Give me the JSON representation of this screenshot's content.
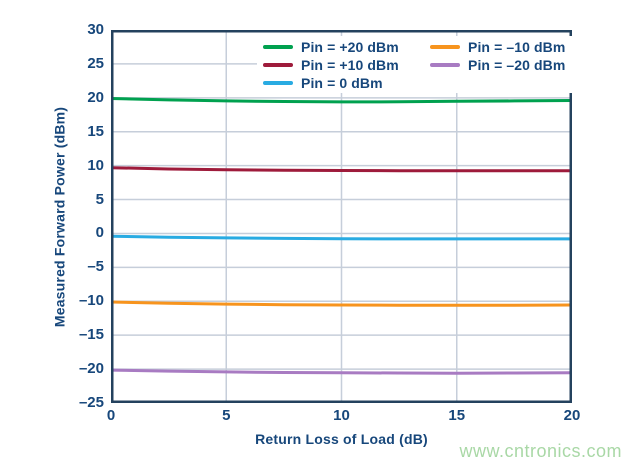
{
  "watermark": "www.cntronics.com",
  "colors": {
    "background": "#FFFFFF",
    "axis_text": "#17477B",
    "plot_border": "#24425E",
    "gridline": "#C6CEDA",
    "watermark_text": "#A9D8A6"
  },
  "chart_data": {
    "type": "line",
    "title": "",
    "xlabel": "Return Loss of Load (dB)",
    "ylabel": "Measured Forward Power (dBm)",
    "xlim": [
      0,
      20
    ],
    "ylim": [
      -25,
      30
    ],
    "grid": true,
    "legend_position": "top-right-inside",
    "x_ticks": [
      0,
      5,
      10,
      15,
      20
    ],
    "x_tick_labels": [
      "0",
      "5",
      "10",
      "15",
      "20"
    ],
    "y_ticks": [
      30,
      25,
      20,
      15,
      10,
      5,
      0,
      -5,
      -10,
      -15,
      -20,
      -25
    ],
    "y_tick_labels": [
      "30",
      "25",
      "20",
      "15",
      "10",
      "5",
      "0",
      "–5",
      "–10",
      "–15",
      "–20",
      "–25"
    ],
    "x": [
      0,
      2.5,
      5,
      7.5,
      10,
      12.5,
      15,
      17.5,
      20
    ],
    "series": [
      {
        "name": "Pin = +20 dBm",
        "color": "#00A14F",
        "values": [
          19.9,
          19.7,
          19.55,
          19.45,
          19.4,
          19.42,
          19.48,
          19.55,
          19.6
        ]
      },
      {
        "name": "Pin = +10 dBm",
        "color": "#9E1B3B",
        "values": [
          9.7,
          9.5,
          9.4,
          9.32,
          9.28,
          9.25,
          9.25,
          9.25,
          9.25
        ]
      },
      {
        "name": "Pin = 0 dBm",
        "color": "#29ABE2",
        "values": [
          -0.4,
          -0.55,
          -0.65,
          -0.73,
          -0.78,
          -0.8,
          -0.8,
          -0.8,
          -0.8
        ]
      },
      {
        "name": "Pin = –10 dBm",
        "color": "#F7941E",
        "values": [
          -10.1,
          -10.3,
          -10.42,
          -10.5,
          -10.55,
          -10.58,
          -10.6,
          -10.58,
          -10.55
        ]
      },
      {
        "name": "Pin = –20 dBm",
        "color": "#A87BC2",
        "values": [
          -20.15,
          -20.3,
          -20.42,
          -20.5,
          -20.55,
          -20.58,
          -20.6,
          -20.58,
          -20.55
        ]
      }
    ],
    "legend_order": [
      0,
      3,
      1,
      4,
      2
    ]
  }
}
